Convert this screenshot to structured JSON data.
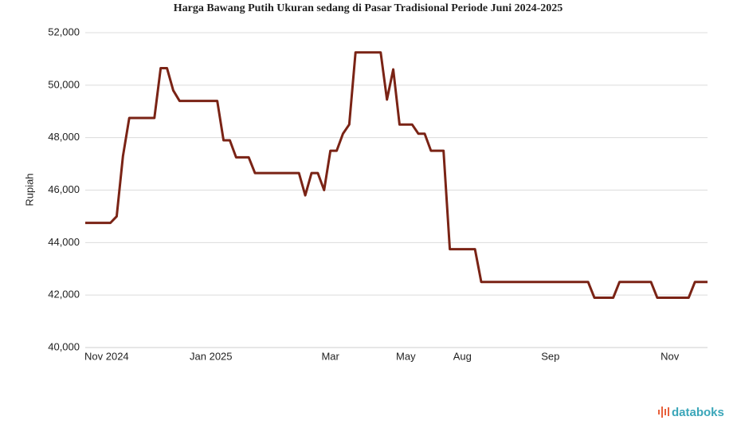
{
  "chart_data": {
    "type": "line",
    "title": "Harga Bawang Putih Ukuran sedang di Pasar Tradisional Periode Juni 2024-2025",
    "y_label": "Rupiah",
    "logo": "databoks",
    "categories": [
      "Nov 2024",
      null,
      null,
      null,
      null,
      null,
      null,
      null,
      null,
      null,
      null,
      null,
      null,
      null,
      null,
      null,
      null,
      null,
      null,
      null,
      "Jan 2025",
      null,
      null,
      null,
      null,
      null,
      null,
      null,
      null,
      null,
      null,
      null,
      null,
      null,
      null,
      null,
      null,
      null,
      null,
      "Mar",
      null,
      null,
      null,
      null,
      null,
      null,
      null,
      null,
      null,
      null,
      null,
      "May",
      null,
      null,
      null,
      null,
      null,
      null,
      null,
      null,
      "Aug",
      null,
      null,
      null,
      null,
      null,
      null,
      null,
      null,
      null,
      null,
      null,
      null,
      null,
      "Sep",
      null,
      null,
      null,
      null,
      null,
      null,
      null,
      null,
      null,
      null,
      null,
      null,
      null,
      null,
      null,
      null,
      null,
      null,
      "Nov",
      null,
      null,
      null,
      null,
      null,
      null
    ],
    "series": [
      {
        "name": "Rupiah",
        "color": "#7a2315",
        "values": [
          44750,
          44750,
          44750,
          44750,
          44750,
          45000,
          47300,
          48750,
          48750,
          48750,
          48750,
          48750,
          50650,
          50650,
          49800,
          49400,
          49400,
          49400,
          49400,
          49400,
          49400,
          49400,
          47900,
          47900,
          47250,
          47250,
          47250,
          46650,
          46650,
          46650,
          46650,
          46650,
          46650,
          46650,
          46650,
          45800,
          46650,
          46650,
          46000,
          47500,
          47500,
          48150,
          48500,
          51250,
          51250,
          51250,
          51250,
          51250,
          49450,
          50600,
          48500,
          48500,
          48500,
          48150,
          48150,
          47500,
          47500,
          47500,
          43750,
          43750,
          43750,
          43750,
          43750,
          42500,
          42500,
          42500,
          42500,
          42500,
          42500,
          42500,
          42500,
          42500,
          42500,
          42500,
          42500,
          42500,
          42500,
          42500,
          42500,
          42500,
          42500,
          41900,
          41900,
          41900,
          41900,
          42500,
          42500,
          42500,
          42500,
          42500,
          42500,
          41900,
          41900,
          41900,
          41900,
          41900,
          41900,
          42500,
          42500,
          42500
        ]
      }
    ],
    "ylim": [
      40000,
      52000
    ],
    "yticks": [
      {
        "value": 40000,
        "label": "40,000"
      },
      {
        "value": 42000,
        "label": "42,000"
      },
      {
        "value": 44000,
        "label": "44,000"
      },
      {
        "value": 46000,
        "label": "46,000"
      },
      {
        "value": 48000,
        "label": "48,000"
      },
      {
        "value": 50000,
        "label": "50,000"
      },
      {
        "value": 52000,
        "label": "52,000"
      }
    ],
    "grid": true
  }
}
